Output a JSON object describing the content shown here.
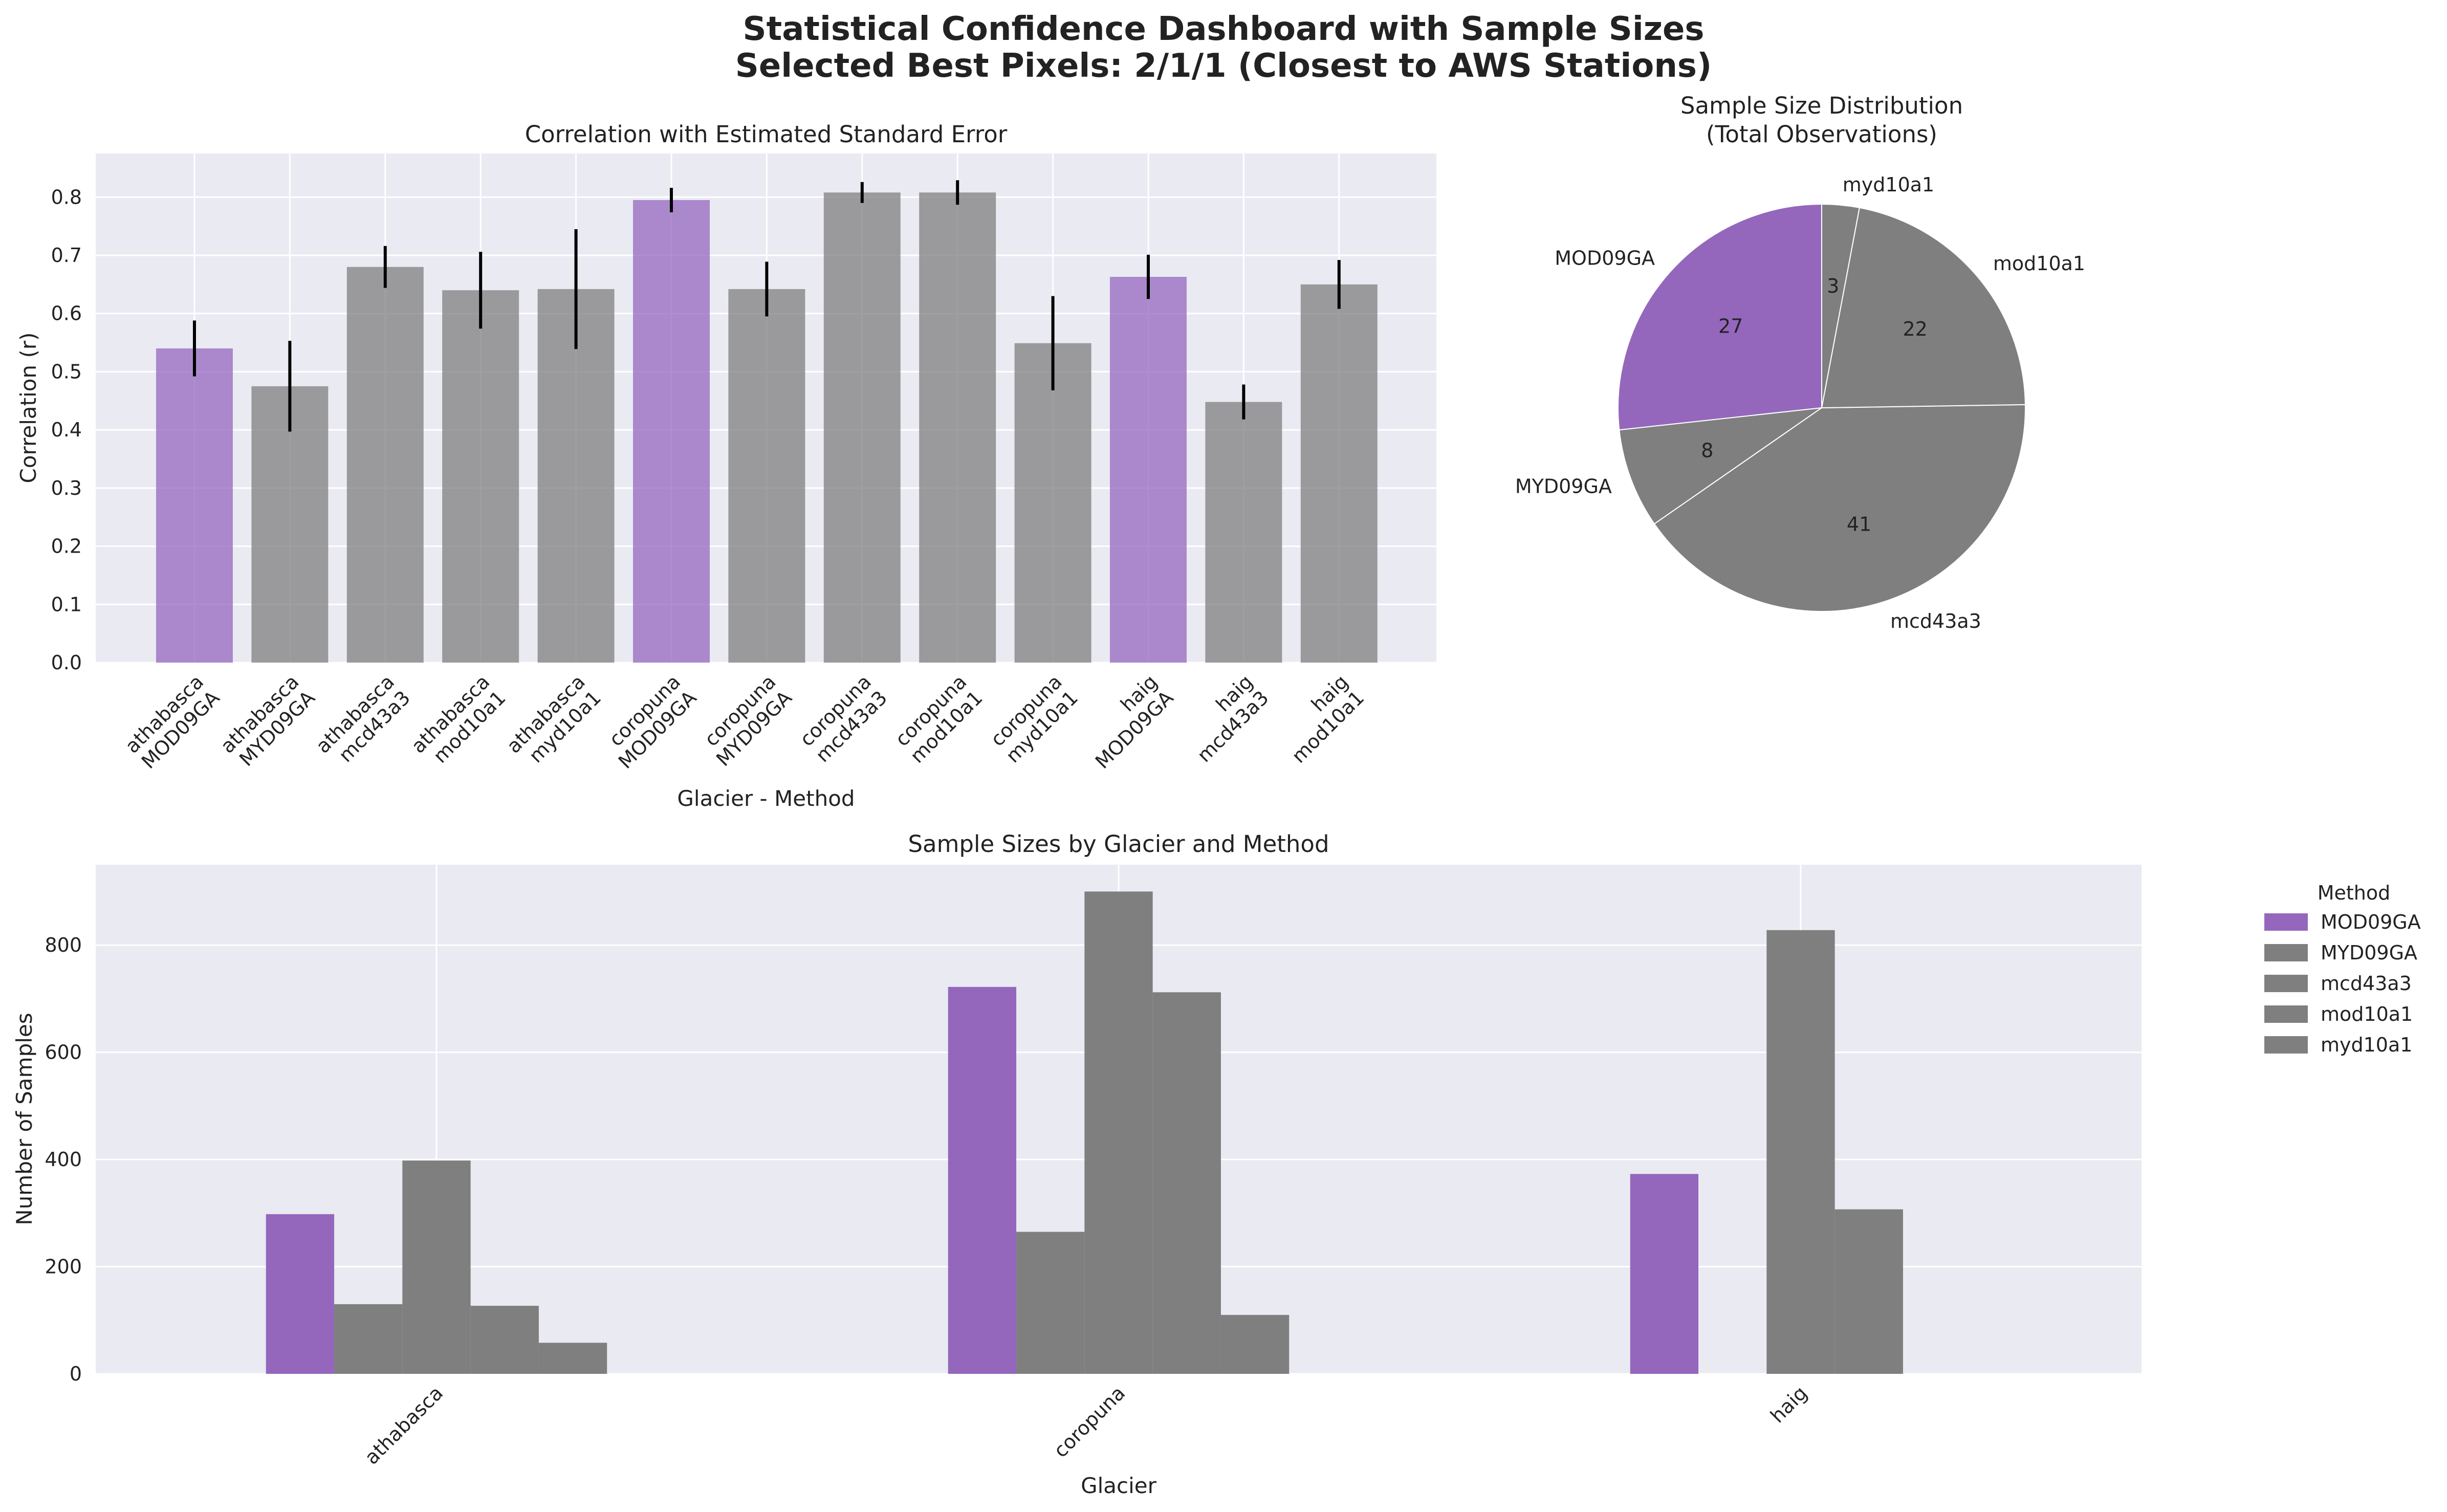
{
  "figure": {
    "title_line1": "Statistical Confidence Dashboard with Sample Sizes",
    "title_line2": "Selected Best Pixels: 2/1/1 (Closest to AWS Stations)"
  },
  "colors": {
    "highlight": "#9467bd",
    "other": "#7f7f7f",
    "axes_bg": "#eaeaf2",
    "grid": "#ffffff"
  },
  "chart_data": [
    {
      "id": "correlation",
      "type": "bar",
      "title": "Correlation with Estimated Standard Error",
      "xlabel": "Glacier - Method",
      "ylabel": "Correlation (r)",
      "ylim": [
        0,
        0.875
      ],
      "yticks": [
        0.0,
        0.1,
        0.2,
        0.3,
        0.4,
        0.5,
        0.6,
        0.7,
        0.8
      ],
      "ytick_labels": [
        "0.0",
        "0.1",
        "0.2",
        "0.3",
        "0.4",
        "0.5",
        "0.6",
        "0.7",
        "0.8"
      ],
      "grid": true,
      "categories": [
        {
          "glacier": "athabasca",
          "method": "MOD09GA"
        },
        {
          "glacier": "athabasca",
          "method": "MYD09GA"
        },
        {
          "glacier": "athabasca",
          "method": "mcd43a3"
        },
        {
          "glacier": "athabasca",
          "method": "mod10a1"
        },
        {
          "glacier": "athabasca",
          "method": "myd10a1"
        },
        {
          "glacier": "coropuna",
          "method": "MOD09GA"
        },
        {
          "glacier": "coropuna",
          "method": "MYD09GA"
        },
        {
          "glacier": "coropuna",
          "method": "mcd43a3"
        },
        {
          "glacier": "coropuna",
          "method": "mod10a1"
        },
        {
          "glacier": "coropuna",
          "method": "myd10a1"
        },
        {
          "glacier": "haig",
          "method": "MOD09GA"
        },
        {
          "glacier": "haig",
          "method": "mcd43a3"
        },
        {
          "glacier": "haig",
          "method": "mod10a1"
        }
      ],
      "values": [
        0.54,
        0.475,
        0.68,
        0.64,
        0.642,
        0.795,
        0.642,
        0.808,
        0.808,
        0.549,
        0.663,
        0.448,
        0.65
      ],
      "errors": [
        0.048,
        0.078,
        0.036,
        0.066,
        0.103,
        0.021,
        0.047,
        0.018,
        0.021,
        0.081,
        0.038,
        0.03,
        0.042
      ],
      "highlight": [
        true,
        false,
        false,
        false,
        false,
        true,
        false,
        false,
        false,
        false,
        true,
        false,
        false
      ]
    },
    {
      "id": "sample-size-pie",
      "type": "pie",
      "title_line1": "Sample Size Distribution",
      "title_line2": "(Total Observations)",
      "start_angle": 90,
      "counterclockwise": true,
      "slices": [
        {
          "label": "MOD09GA",
          "value": 27,
          "pct_label": "27",
          "highlight": true
        },
        {
          "label": "MYD09GA",
          "value": 8,
          "pct_label": "8",
          "highlight": false
        },
        {
          "label": "mcd43a3",
          "value": 41,
          "pct_label": "41",
          "highlight": false
        },
        {
          "label": "mod10a1",
          "value": 22,
          "pct_label": "22",
          "highlight": false
        },
        {
          "label": "myd10a1",
          "value": 3,
          "pct_label": "3",
          "highlight": false
        }
      ]
    },
    {
      "id": "sample-sizes",
      "type": "bar",
      "title": "Sample Sizes by Glacier and Method",
      "xlabel": "Glacier",
      "ylabel": "Number of Samples",
      "ylim": [
        0,
        950
      ],
      "yticks": [
        0,
        200,
        400,
        600,
        800
      ],
      "ytick_labels": [
        "0",
        "200",
        "400",
        "600",
        "800"
      ],
      "grid": true,
      "categories": [
        "athabasca",
        "coropuna",
        "haig"
      ],
      "legend": {
        "title": "Method",
        "placement": "outside-right"
      },
      "series": [
        {
          "name": "MOD09GA",
          "values": [
            298,
            722,
            373
          ],
          "highlight": true
        },
        {
          "name": "MYD09GA",
          "values": [
            130,
            265,
            0
          ],
          "highlight": false
        },
        {
          "name": "mcd43a3",
          "values": [
            398,
            900,
            828
          ],
          "highlight": false
        },
        {
          "name": "mod10a1",
          "values": [
            127,
            712,
            307
          ],
          "highlight": false
        },
        {
          "name": "myd10a1",
          "values": [
            58,
            110,
            0
          ],
          "highlight": false
        }
      ]
    }
  ]
}
